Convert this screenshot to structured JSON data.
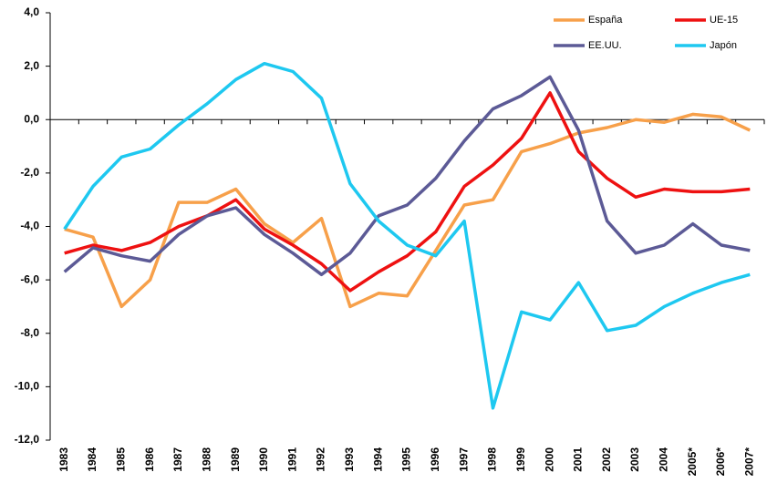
{
  "chart_data": {
    "type": "line",
    "categories": [
      "1983",
      "1984",
      "1985",
      "1986",
      "1987",
      "1988",
      "1989",
      "1990",
      "1991",
      "1992",
      "1993",
      "1994",
      "1995",
      "1996",
      "1997",
      "1998",
      "1999",
      "2000",
      "2001",
      "2002",
      "2003",
      "2004",
      "2005*",
      "2006*",
      "2007*"
    ],
    "series": [
      {
        "name": "España",
        "color": "#f7a04a",
        "values": [
          -4.1,
          -4.4,
          -7.0,
          -6.0,
          -3.1,
          -3.1,
          -2.6,
          -3.9,
          -4.6,
          -3.7,
          -7.0,
          -6.5,
          -6.6,
          -4.9,
          -3.2,
          -3.0,
          -1.2,
          -0.9,
          -0.5,
          -0.3,
          0.0,
          -0.1,
          0.2,
          0.1,
          -0.4
        ]
      },
      {
        "name": "UE-15",
        "color": "#ee1111",
        "values": [
          -5.0,
          -4.7,
          -4.9,
          -4.6,
          -4.0,
          -3.6,
          -3.0,
          -4.1,
          -4.7,
          -5.4,
          -6.4,
          -5.7,
          -5.1,
          -4.2,
          -2.5,
          -1.7,
          -0.7,
          1.0,
          -1.2,
          -2.2,
          -2.9,
          -2.6,
          -2.7,
          -2.7,
          -2.6
        ]
      },
      {
        "name": "EE.UU.",
        "color": "#5c5a96",
        "values": [
          -5.7,
          -4.8,
          -5.1,
          -5.3,
          -4.3,
          -3.6,
          -3.3,
          -4.3,
          -5.0,
          -5.8,
          -5.0,
          -3.6,
          -3.2,
          -2.2,
          -0.8,
          0.4,
          0.9,
          1.6,
          -0.4,
          -3.8,
          -5.0,
          -4.7,
          -3.9,
          -4.7,
          -4.9
        ]
      },
      {
        "name": "Japón",
        "color": "#1ec8f0",
        "values": [
          -4.1,
          -2.5,
          -1.4,
          -1.1,
          -0.2,
          0.6,
          1.5,
          2.1,
          1.8,
          0.8,
          -2.4,
          -3.8,
          -4.7,
          -5.1,
          -3.8,
          -10.8,
          -7.2,
          -7.5,
          -6.1,
          -7.9,
          -7.7,
          -7.0,
          -6.5,
          -6.1,
          -5.8
        ]
      }
    ],
    "ylim": [
      -12,
      4
    ],
    "yticks": [
      {
        "value": 4,
        "label": "4,0"
      },
      {
        "value": 2,
        "label": "2,0"
      },
      {
        "value": 0,
        "label": "0,0"
      },
      {
        "value": -2,
        "label": "-2,0"
      },
      {
        "value": -4,
        "label": "-4,0"
      },
      {
        "value": -6,
        "label": "-6,0"
      },
      {
        "value": -8,
        "label": "-8,0"
      },
      {
        "value": -10,
        "label": "-10,0"
      },
      {
        "value": -12,
        "label": "-12,0"
      }
    ],
    "grid": false,
    "legend": "top-right"
  }
}
